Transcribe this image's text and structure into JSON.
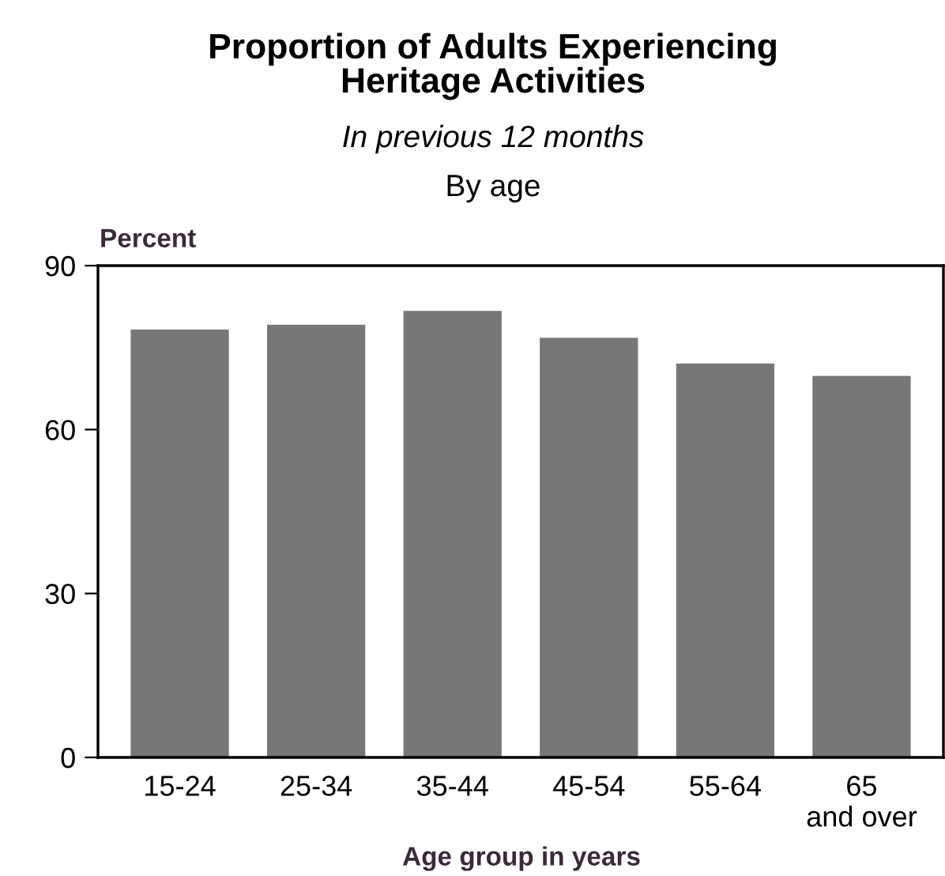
{
  "chart_data": {
    "type": "bar",
    "title": "Proportion of Adults Experiencing\nHeritage Activities",
    "subtitle": "In previous 12 months",
    "annotations": [
      "By age"
    ],
    "categories": [
      "15-24",
      "25-34",
      "35-44",
      "45-54",
      "55-64",
      "65\nand over"
    ],
    "values": [
      78.3,
      79.2,
      81.7,
      76.8,
      72.1,
      69.8
    ],
    "color": "#777777",
    "ylabel": "Percent",
    "xlabel": "Age group in years",
    "ylim": [
      0,
      90
    ],
    "yticks": [
      0,
      30,
      60,
      90
    ],
    "grid": false,
    "legend": false
  }
}
